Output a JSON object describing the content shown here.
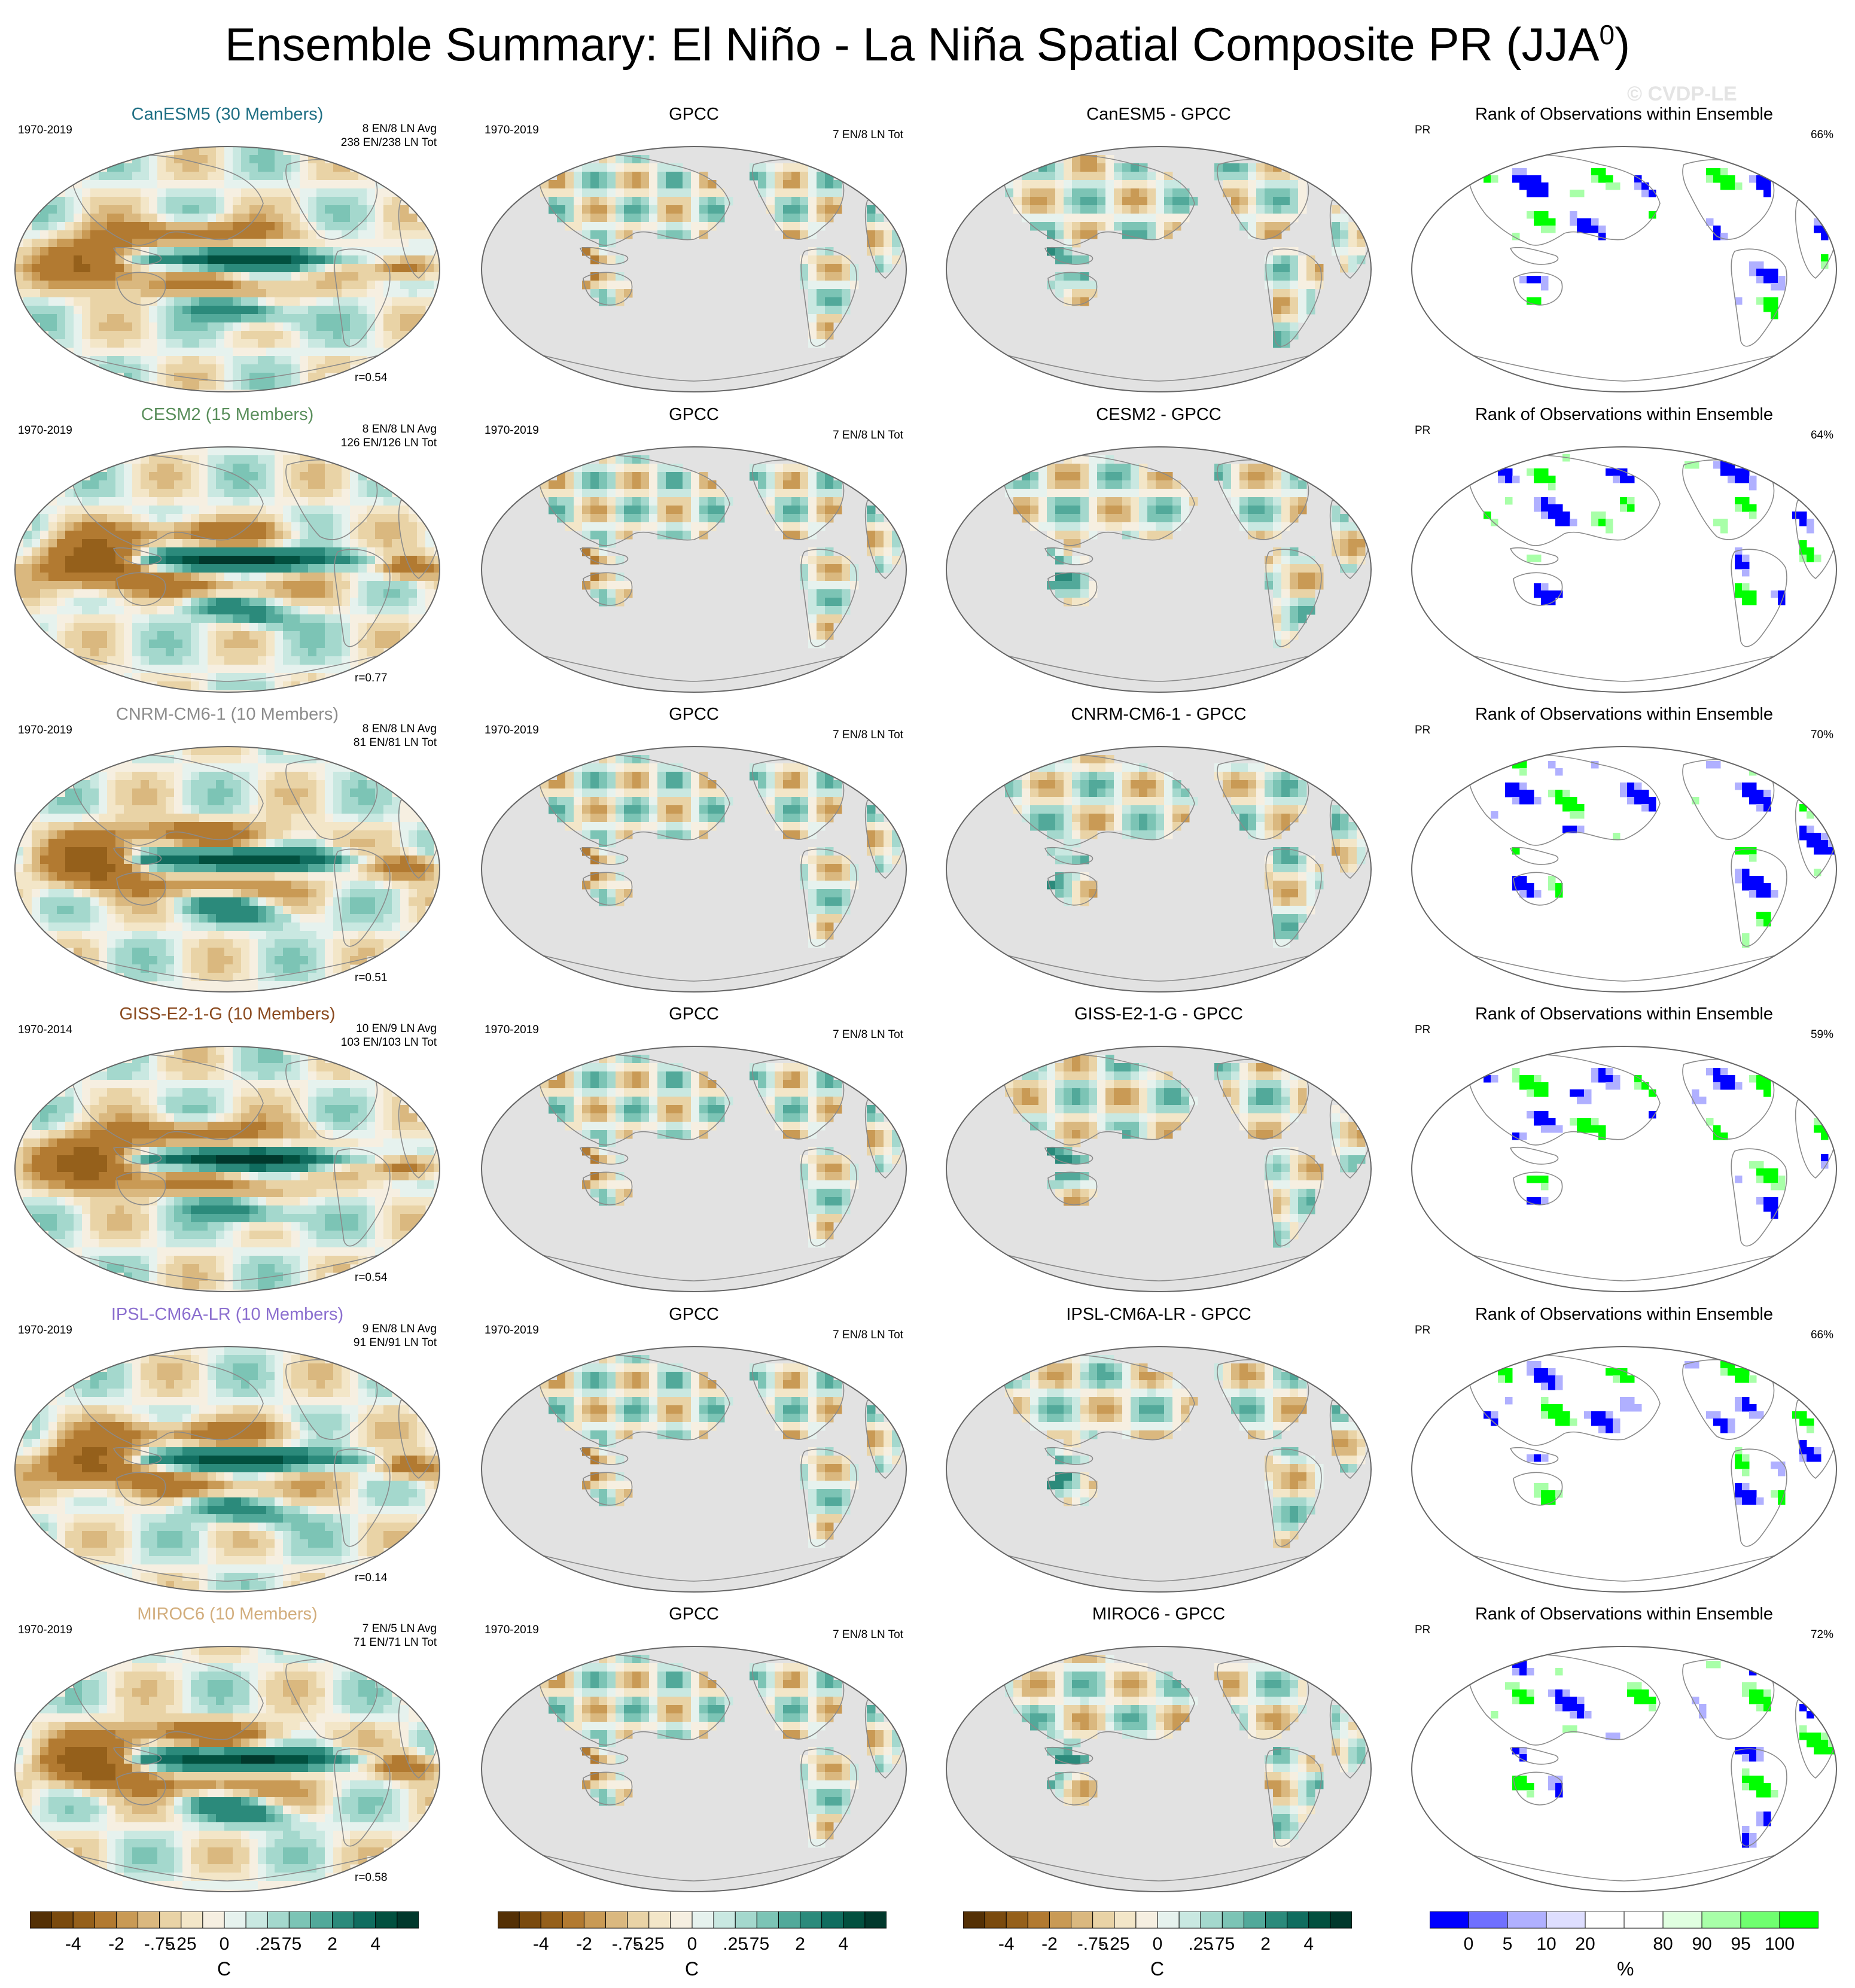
{
  "title": "Ensemble Summary: El Niño - La Niña Spatial Composite PR (JJA",
  "title_sup": "0",
  "title_close": ")",
  "watermark": "© CVDP-LE",
  "chart_data": {
    "type": "heatmap",
    "description_rows": "6 model rows x 4 map columns (model composite, GPCC observations, model minus GPCC difference, rank of observations within ensemble)",
    "rows": [
      {
        "model": {
          "title": "CanESM5 (30 Members)",
          "title_color": "#1f6f84",
          "period": "1970-2019",
          "info1": "8 EN/8 LN Avg",
          "info2": "238 EN/238 LN Tot",
          "r": "r=0.54"
        },
        "obs": {
          "title": "GPCC",
          "period": "1970-2019",
          "info": "7 EN/8 LN Tot"
        },
        "diff": {
          "title": "CanESM5 - GPCC"
        },
        "rank": {
          "title": "Rank of Observations within Ensemble",
          "var": "PR",
          "pct": "66%"
        }
      },
      {
        "model": {
          "title": "CESM2 (15 Members)",
          "title_color": "#5a8f5c",
          "period": "1970-2019",
          "info1": "8 EN/8 LN Avg",
          "info2": "126 EN/126 LN Tot",
          "r": "r=0.77"
        },
        "obs": {
          "title": "GPCC",
          "period": "1970-2019",
          "info": "7 EN/8 LN Tot"
        },
        "diff": {
          "title": "CESM2 - GPCC"
        },
        "rank": {
          "title": "Rank of Observations within Ensemble",
          "var": "PR",
          "pct": "64%"
        }
      },
      {
        "model": {
          "title": "CNRM-CM6-1 (10 Members)",
          "title_color": "#8c8c8c",
          "period": "1970-2019",
          "info1": "8 EN/8 LN Avg",
          "info2": "81 EN/81 LN Tot",
          "r": "r=0.51"
        },
        "obs": {
          "title": "GPCC",
          "period": "1970-2019",
          "info": "7 EN/8 LN Tot"
        },
        "diff": {
          "title": "CNRM-CM6-1 - GPCC"
        },
        "rank": {
          "title": "Rank of Observations within Ensemble",
          "var": "PR",
          "pct": "70%"
        }
      },
      {
        "model": {
          "title": "GISS-E2-1-G (10 Members)",
          "title_color": "#8a4a1f",
          "period": "1970-2014",
          "info1": "10 EN/9 LN Avg",
          "info2": "103 EN/103 LN Tot",
          "r": "r=0.54"
        },
        "obs": {
          "title": "GPCC",
          "period": "1970-2019",
          "info": "7 EN/8 LN Tot"
        },
        "diff": {
          "title": "GISS-E2-1-G - GPCC"
        },
        "rank": {
          "title": "Rank of Observations within Ensemble",
          "var": "PR",
          "pct": "59%"
        }
      },
      {
        "model": {
          "title": "IPSL-CM6A-LR (10 Members)",
          "title_color": "#8b6fcf",
          "period": "1970-2019",
          "info1": "9 EN/8 LN Avg",
          "info2": "91 EN/91 LN Tot",
          "r": "r=0.14"
        },
        "obs": {
          "title": "GPCC",
          "period": "1970-2019",
          "info": "7 EN/8 LN Tot"
        },
        "diff": {
          "title": "IPSL-CM6A-LR - GPCC"
        },
        "rank": {
          "title": "Rank of Observations within Ensemble",
          "var": "PR",
          "pct": "66%"
        }
      },
      {
        "model": {
          "title": "MIROC6 (10 Members)",
          "title_color": "#d2ad7c",
          "period": "1970-2019",
          "info1": "7 EN/5 LN Avg",
          "info2": "71 EN/71 LN Tot",
          "r": "r=0.58"
        },
        "obs": {
          "title": "GPCC",
          "period": "1970-2019",
          "info": "7 EN/8 LN Tot"
        },
        "diff": {
          "title": "MIROC6 - GPCC"
        },
        "rank": {
          "title": "Rank of Observations within Ensemble",
          "var": "PR",
          "pct": "72%"
        }
      }
    ],
    "colorbars": {
      "anomaly": {
        "colors": [
          "#543005",
          "#7a4a0e",
          "#95601b",
          "#b27a31",
          "#c99a55",
          "#dab87f",
          "#e9d3a6",
          "#f3e6c8",
          "#f6efe1",
          "#e6f2ee",
          "#c9e8e1",
          "#a4d8cd",
          "#7cc4b5",
          "#52a99a",
          "#2b8a7b",
          "#106d5f",
          "#02503f",
          "#01382c"
        ],
        "labels": [
          "-4",
          "-2",
          "-.75",
          "-.25",
          "0",
          ".25",
          ".75",
          "2",
          "4"
        ],
        "unit": "C"
      },
      "rank": {
        "colors": [
          "#0000ff",
          "#7070ff",
          "#b0b0ff",
          "#dedeff",
          "#ffffff",
          "#ffffff",
          "#e0ffe0",
          "#a8ffa8",
          "#70ff70",
          "#00ff00"
        ],
        "labels": [
          "0",
          "5",
          "10",
          "20",
          "80",
          "90",
          "95",
          "100"
        ],
        "unit": "%"
      }
    }
  }
}
